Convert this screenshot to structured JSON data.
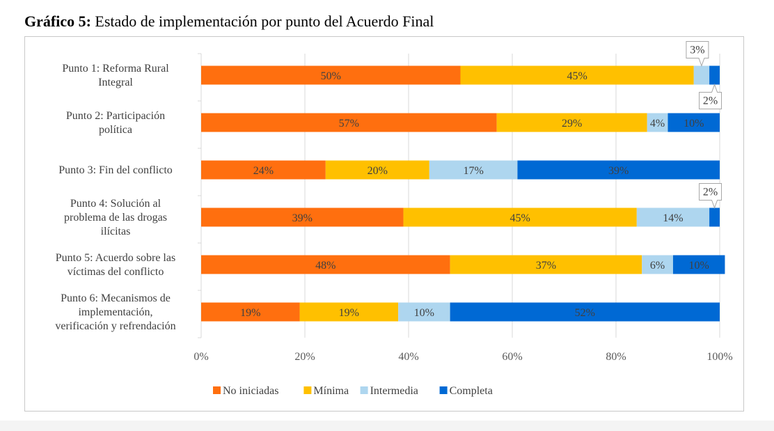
{
  "title": {
    "lead": "Gráfico 5:",
    "text": " Estado de implementación por punto del Acuerdo Final"
  },
  "chart_data": {
    "type": "bar",
    "orientation": "horizontal",
    "stacked": "percent",
    "categories": [
      [
        "Punto 1: Reforma Rural",
        "Integral"
      ],
      [
        "Punto 2:  Participación",
        "política"
      ],
      [
        "Punto 3: Fin del conflicto"
      ],
      [
        "Punto 4:  Solución al",
        "problema de las drogas",
        "ilícitas"
      ],
      [
        "Punto 5:  Acuerdo sobre las",
        "víctimas del conflicto"
      ],
      [
        "Punto 6:  Mecanismos de",
        "implementación,",
        "verificación y refrendación"
      ]
    ],
    "series": [
      {
        "name": "No iniciadas",
        "color": "#ff6f0f",
        "values": [
          50,
          57,
          24,
          39,
          48,
          19
        ],
        "labels": [
          "50%",
          "57%",
          "24%",
          "39%",
          "48%",
          "19%"
        ]
      },
      {
        "name": "Mínima",
        "color": "#ffc000",
        "values": [
          45,
          29,
          20,
          45,
          37,
          19
        ],
        "labels": [
          "45%",
          "29%",
          "20%",
          "45%",
          "37%",
          "19%"
        ]
      },
      {
        "name": "Intermedia",
        "color": "#aed6ef",
        "values": [
          3,
          4,
          17,
          14,
          6,
          10
        ],
        "labels": [
          "3%",
          "4%",
          "17%",
          "14%",
          "6%",
          "10%"
        ]
      },
      {
        "name": "Completa",
        "color": "#0069d4",
        "values": [
          2,
          10,
          39,
          2,
          10,
          52
        ],
        "labels": [
          "2%",
          "10%",
          "39%",
          "2%",
          "10%",
          "52%"
        ]
      }
    ],
    "callout_labels": [
      {
        "category": 0,
        "series": 2,
        "position": "above"
      },
      {
        "category": 0,
        "series": 3,
        "position": "below"
      },
      {
        "category": 3,
        "series": 3,
        "position": "above"
      }
    ],
    "xlim": [
      0,
      100
    ],
    "xticks": [
      "0%",
      "20%",
      "40%",
      "60%",
      "80%",
      "100%"
    ],
    "grid": true,
    "legend_position": "bottom"
  }
}
